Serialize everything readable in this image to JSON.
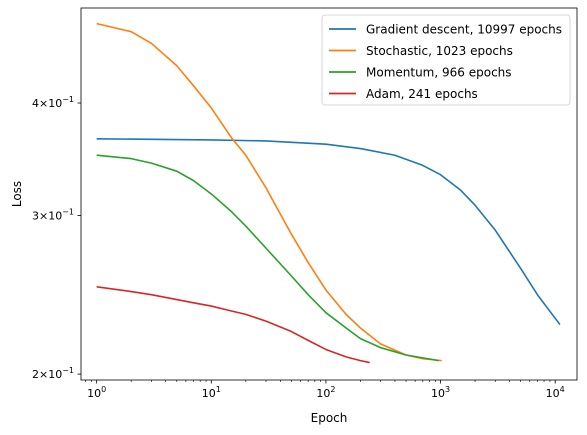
{
  "chart_data": {
    "type": "line",
    "xlabel": "Epoch",
    "ylabel": "Loss",
    "x_scale": "log",
    "y_scale": "log",
    "xlim": [
      0.73,
      15500
    ],
    "ylim": [
      0.197,
      0.51
    ],
    "grid": false,
    "legend_position": "top-right",
    "x_ticks": [
      {
        "value": 1,
        "base": "10",
        "exp": "0"
      },
      {
        "value": 10,
        "base": "10",
        "exp": "1"
      },
      {
        "value": 100,
        "base": "10",
        "exp": "2"
      },
      {
        "value": 1000,
        "base": "10",
        "exp": "3"
      },
      {
        "value": 10000,
        "base": "10",
        "exp": "4"
      }
    ],
    "y_ticks": [
      {
        "value": 0.2,
        "mant": "2×10",
        "exp": "−1"
      },
      {
        "value": 0.3,
        "mant": "3×10",
        "exp": "−1"
      },
      {
        "value": 0.4,
        "mant": "4×10",
        "exp": "−1"
      }
    ],
    "series": [
      {
        "name": "Gradient descent, 10997 epochs",
        "color": "#1f77b4",
        "points": [
          [
            1,
            0.365
          ],
          [
            10,
            0.364
          ],
          [
            30,
            0.363
          ],
          [
            100,
            0.36
          ],
          [
            200,
            0.356
          ],
          [
            400,
            0.35
          ],
          [
            700,
            0.341
          ],
          [
            1000,
            0.333
          ],
          [
            1500,
            0.32
          ],
          [
            2000,
            0.308
          ],
          [
            3000,
            0.289
          ],
          [
            5000,
            0.262
          ],
          [
            7000,
            0.245
          ],
          [
            10997,
            0.227
          ]
        ]
      },
      {
        "name": "Stochastic, 1023 epochs",
        "color": "#ff7f0e",
        "points": [
          [
            1,
            0.49
          ],
          [
            2,
            0.48
          ],
          [
            3,
            0.466
          ],
          [
            5,
            0.44
          ],
          [
            7,
            0.418
          ],
          [
            10,
            0.395
          ],
          [
            15,
            0.366
          ],
          [
            20,
            0.35
          ],
          [
            30,
            0.322
          ],
          [
            50,
            0.286
          ],
          [
            70,
            0.266
          ],
          [
            100,
            0.248
          ],
          [
            150,
            0.233
          ],
          [
            200,
            0.225
          ],
          [
            300,
            0.216
          ],
          [
            500,
            0.21
          ],
          [
            700,
            0.208
          ],
          [
            1023,
            0.207
          ]
        ]
      },
      {
        "name": "Momentum, 966 epochs",
        "color": "#2ca02c",
        "points": [
          [
            1,
            0.35
          ],
          [
            2,
            0.347
          ],
          [
            3,
            0.343
          ],
          [
            5,
            0.336
          ],
          [
            7,
            0.328
          ],
          [
            10,
            0.317
          ],
          [
            15,
            0.303
          ],
          [
            20,
            0.292
          ],
          [
            30,
            0.276
          ],
          [
            50,
            0.257
          ],
          [
            70,
            0.245
          ],
          [
            100,
            0.234
          ],
          [
            150,
            0.225
          ],
          [
            200,
            0.219
          ],
          [
            300,
            0.214
          ],
          [
            500,
            0.21
          ],
          [
            966,
            0.207
          ]
        ]
      },
      {
        "name": "Adam, 241 epochs",
        "color": "#d62728",
        "points": [
          [
            1,
            0.25
          ],
          [
            2,
            0.247
          ],
          [
            3,
            0.245
          ],
          [
            5,
            0.242
          ],
          [
            7,
            0.24
          ],
          [
            10,
            0.238
          ],
          [
            15,
            0.235
          ],
          [
            20,
            0.233
          ],
          [
            30,
            0.229
          ],
          [
            50,
            0.223
          ],
          [
            70,
            0.218
          ],
          [
            100,
            0.213
          ],
          [
            150,
            0.209
          ],
          [
            200,
            0.207
          ],
          [
            241,
            0.206
          ]
        ]
      }
    ]
  }
}
